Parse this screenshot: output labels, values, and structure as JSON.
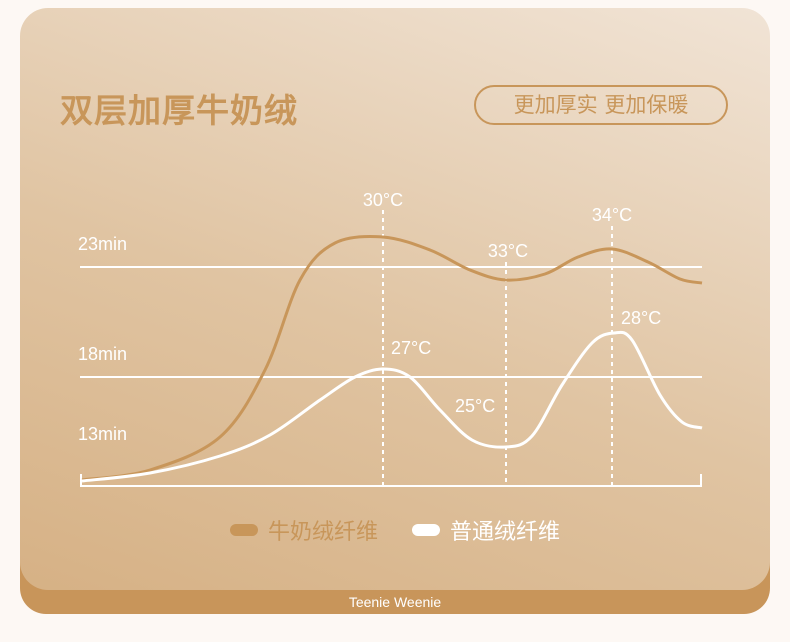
{
  "title": "双层加厚牛奶绒",
  "badge": "更加厚实 更加保暖",
  "brand": "Teenie Weenie",
  "colors": {
    "milk": "#c8965a",
    "normal": "#ffffff",
    "accent": "#c8965a"
  },
  "chart_data": {
    "type": "line",
    "title": "",
    "y_ticks": [
      "23min",
      "18min",
      "13min"
    ],
    "grid": "horizontal lines at 23min and 18min; dotted vertical markers",
    "legend_placement": "bottom",
    "series": [
      {
        "name": "牛奶绒纤维",
        "color": "#c8965a",
        "annotations": [
          "30°C",
          "33°C",
          "34°C"
        ]
      },
      {
        "name": "普通绒纤维",
        "color": "#ffffff",
        "annotations": [
          "27°C",
          "25°C",
          "28°C"
        ]
      }
    ]
  }
}
